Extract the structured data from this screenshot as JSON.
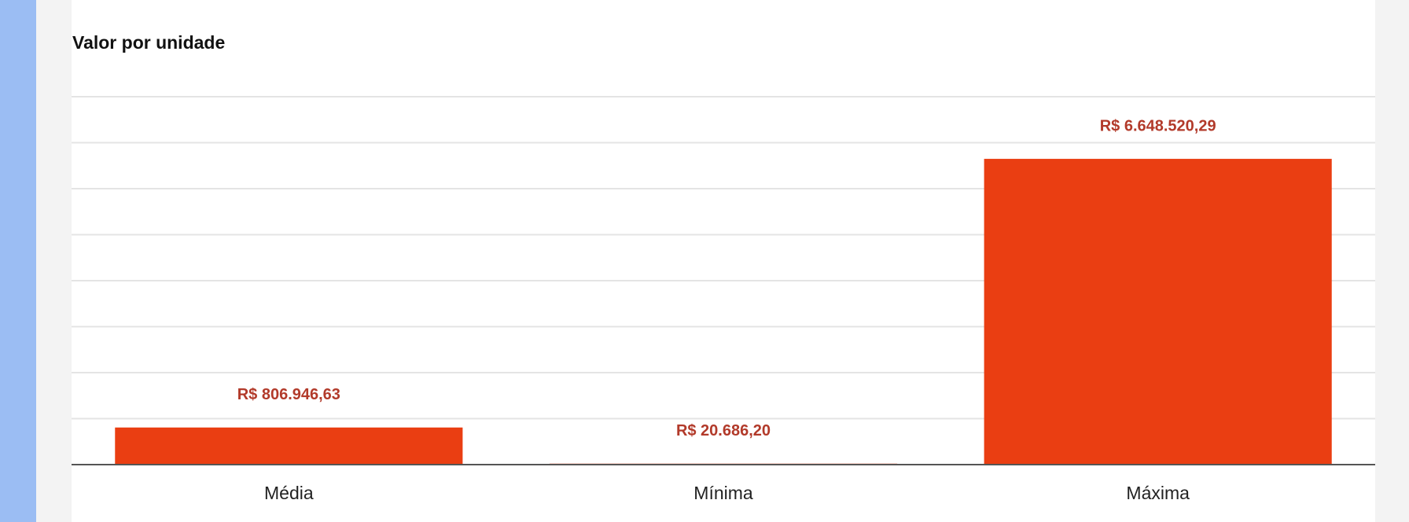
{
  "chart_data": {
    "type": "bar",
    "title": "Valor por unidade",
    "categories": [
      "Média",
      "Mínima",
      "Máxima"
    ],
    "values": [
      806946.63,
      20686.2,
      6648520.29
    ],
    "value_labels": [
      "R$ 806.946,63",
      "R$ 20.686,20",
      "R$ 6.648.520,29"
    ],
    "color": "#ea3e12",
    "ylim": [
      0,
      8000000
    ],
    "yticks": [
      0,
      1000000,
      2000000,
      3000000,
      4000000,
      5000000,
      6000000,
      7000000,
      8000000
    ],
    "grid": true
  }
}
